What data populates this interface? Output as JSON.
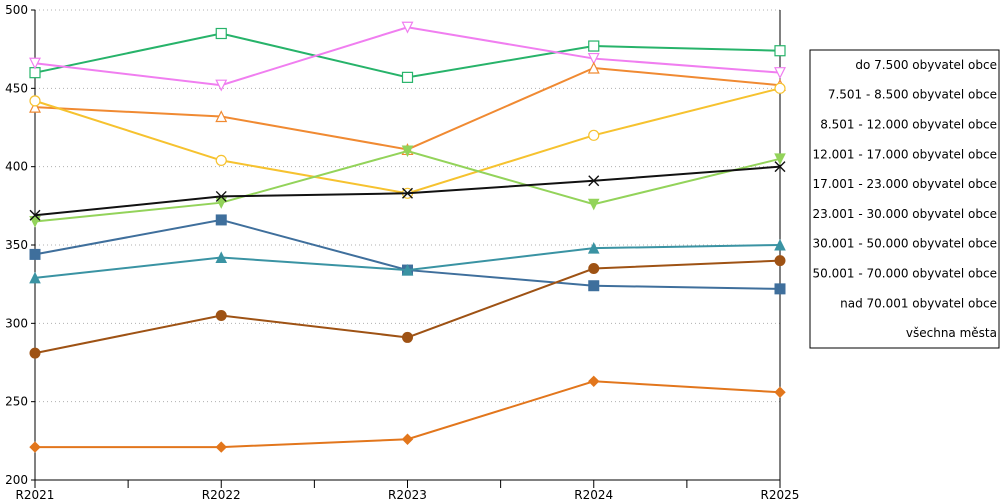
{
  "chart_data": {
    "type": "line",
    "categories": [
      "R2021",
      "R2022",
      "R2023",
      "R2024",
      "R2025"
    ],
    "ylim": [
      200,
      500
    ],
    "yticks": [
      200,
      250,
      300,
      350,
      400,
      450,
      500
    ],
    "grid": "horizontal-dotted",
    "legend_position": "right",
    "series": [
      {
        "name": "do 7.500 obyvatel obce",
        "color": "#27b36a",
        "marker": "square-open",
        "values": [
          460,
          485,
          457,
          477,
          474
        ]
      },
      {
        "name": "7.501 - 8.500 obyvatel obce",
        "color": "#f07ef0",
        "marker": "triangle-down-open",
        "values": [
          466,
          452,
          489,
          469,
          460
        ]
      },
      {
        "name": "8.501 - 12.000 obyvatel obce",
        "color": "#f08a32",
        "marker": "triangle-up-open",
        "values": [
          438,
          432,
          411,
          463,
          452
        ]
      },
      {
        "name": "12.001 - 17.000 obyvatel obce",
        "color": "#f6c22f",
        "marker": "circle-open",
        "values": [
          442,
          404,
          383,
          420,
          450
        ]
      },
      {
        "name": "17.001 - 23.000 obyvatel obce",
        "color": "#93d35a",
        "marker": "triangle-down-filled",
        "values": [
          365,
          377,
          410,
          376,
          405
        ]
      },
      {
        "name": "23.001 - 30.000 obyvatel obce",
        "color": "#3f6f9c",
        "marker": "square-filled",
        "values": [
          344,
          366,
          334,
          324,
          322
        ]
      },
      {
        "name": "30.001 - 50.000 obyvatel obce",
        "color": "#3a93a3",
        "marker": "triangle-up-filled",
        "values": [
          329,
          342,
          334,
          348,
          350
        ]
      },
      {
        "name": "50.001 - 70.000 obyvatel obce",
        "color": "#9e5214",
        "marker": "circle-filled",
        "values": [
          281,
          305,
          291,
          335,
          340
        ]
      },
      {
        "name": "nad 70.001 obyvatel obce",
        "color": "#e2761c",
        "marker": "diamond-filled",
        "values": [
          221,
          221,
          226,
          263,
          256
        ]
      },
      {
        "name": "všechna města",
        "color": "#111111",
        "marker": "x",
        "values": [
          369,
          381,
          383,
          391,
          400
        ]
      }
    ]
  }
}
